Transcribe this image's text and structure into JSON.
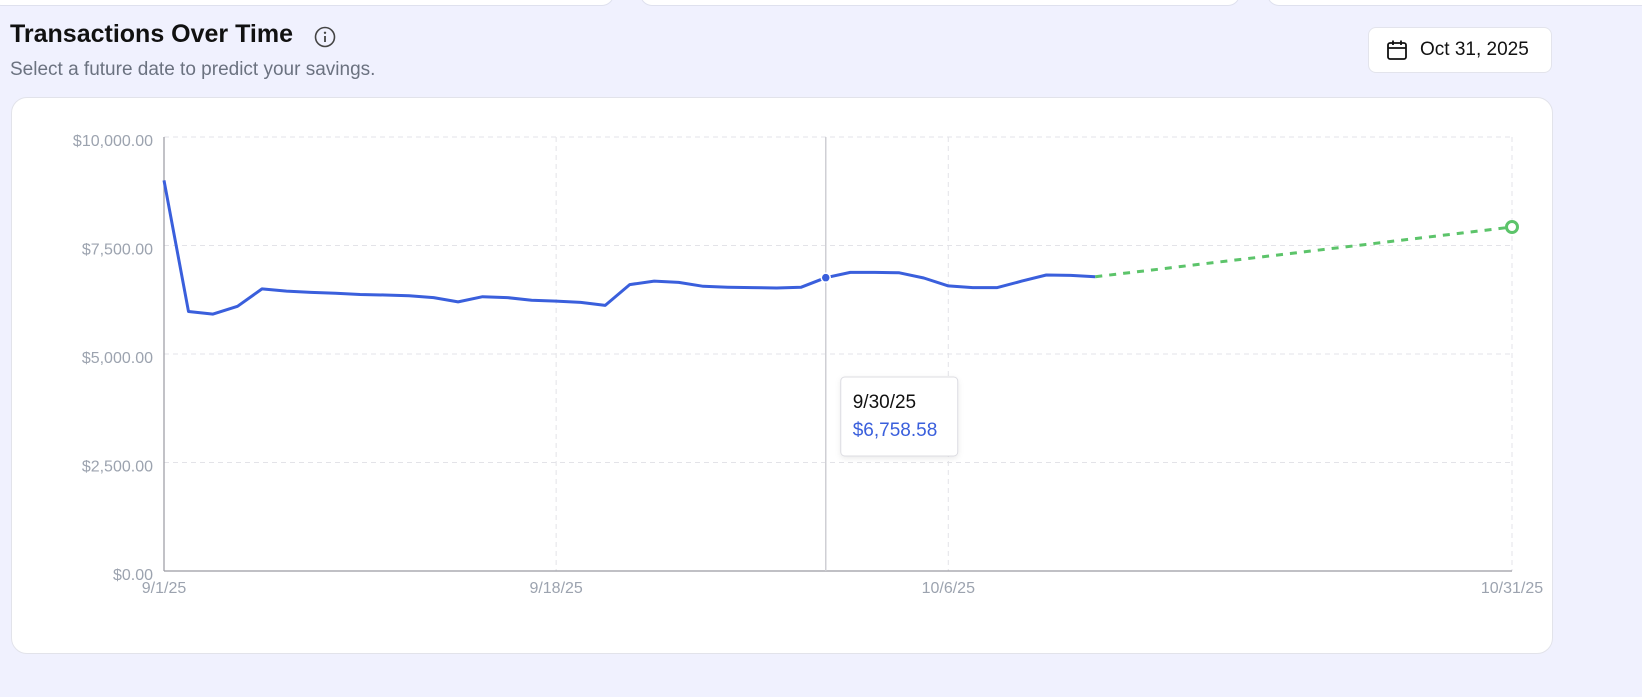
{
  "header": {
    "title": "Transactions Over Time",
    "subtitle": "Select a future date to predict your savings.",
    "date_button": "Oct 31, 2025"
  },
  "chart_data": {
    "type": "line",
    "categories": [
      "9/1/25",
      null,
      null,
      null,
      null,
      null,
      null,
      null,
      null,
      null,
      null,
      null,
      null,
      null,
      null,
      null,
      "9/18/25",
      null,
      null,
      null,
      null,
      null,
      null,
      null,
      null,
      null,
      null,
      "9/30/25",
      null,
      null,
      null,
      null,
      "10/6/25",
      null,
      null,
      null,
      null,
      null,
      null,
      null,
      null,
      null,
      null,
      null,
      null,
      null,
      null,
      null,
      null,
      null,
      null,
      null,
      null,
      null,
      null,
      "10/31/25"
    ],
    "xticks": [
      "9/1/25",
      "9/18/25",
      "10/6/25",
      "10/31/25"
    ],
    "series": [
      {
        "color": "#3a5fdc",
        "values": [
          9000,
          5980,
          5920,
          6100,
          6500,
          6450,
          6420,
          6400,
          6370,
          6360,
          6340,
          6300,
          6200,
          6320,
          6300,
          6240,
          6220,
          6190,
          6120,
          6600,
          6680,
          6650,
          6560,
          6540,
          6530,
          6520,
          6540,
          6758.58,
          6880,
          6880,
          6870,
          6750,
          6570,
          6530,
          6530,
          6680,
          6820,
          6810,
          6780,
          null,
          null,
          null,
          null,
          null,
          null,
          null,
          null,
          null,
          null,
          null,
          null,
          null,
          null,
          null,
          null,
          null
        ],
        "value_labels": [
          null,
          null,
          null,
          null,
          null,
          null,
          null,
          null,
          null,
          null,
          null,
          null,
          null,
          null,
          null,
          null,
          null,
          null,
          null,
          null,
          null,
          null,
          null,
          null,
          null,
          null,
          null,
          "$6,758.58",
          null,
          null,
          null,
          null,
          null,
          null,
          null,
          null,
          null,
          null,
          null,
          null,
          null,
          null,
          null,
          null,
          null,
          null,
          null,
          null,
          null,
          null,
          null,
          null,
          null,
          null,
          null,
          null
        ]
      },
      {
        "color": "#5cc46a",
        "dashed": true,
        "values": [
          null,
          null,
          null,
          null,
          null,
          null,
          null,
          null,
          null,
          null,
          null,
          null,
          null,
          null,
          null,
          null,
          null,
          null,
          null,
          null,
          null,
          null,
          null,
          null,
          null,
          null,
          null,
          null,
          null,
          null,
          null,
          null,
          null,
          null,
          null,
          null,
          null,
          null,
          6780,
          6847,
          6915,
          6982,
          7050,
          7117,
          7184,
          7252,
          7319,
          7386,
          7454,
          7521,
          7589,
          7656,
          7723,
          7791,
          7858,
          7926
        ]
      }
    ],
    "ylim": [
      0,
      10000
    ],
    "yticks": [
      {
        "value": 0,
        "label": "$0.00"
      },
      {
        "value": 2500,
        "label": "$2,500.00"
      },
      {
        "value": 5000,
        "label": "$5,000.00"
      },
      {
        "value": 7500,
        "label": "$7,500.00"
      },
      {
        "value": 10000,
        "label": "$10,000.00"
      }
    ],
    "grid": true
  }
}
